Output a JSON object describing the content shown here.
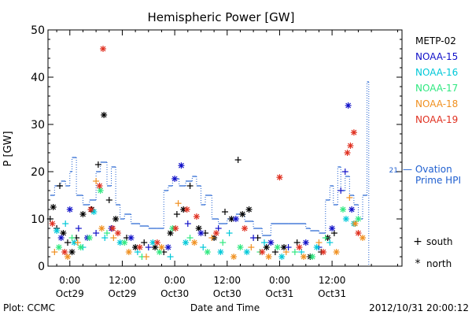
{
  "chart_data": {
    "type": "scatter",
    "title": "Hemispheric Power [GW]",
    "ylabel": "P [GW]",
    "xlabel": "Date and Time",
    "ylim": [
      0,
      50
    ],
    "y_ticks": [
      0,
      10,
      20,
      30,
      40,
      50
    ],
    "xlim": [
      -5,
      76
    ],
    "x_unit": "hours from 2012-10-29 00:00 UT",
    "x_ticks": [
      {
        "x": 0,
        "time": "0:00",
        "date": "Oct29"
      },
      {
        "x": 12,
        "time": "12:00",
        "date": "Oct29"
      },
      {
        "x": 24,
        "time": "0:00",
        "date": "Oct30"
      },
      {
        "x": 36,
        "time": "12:00",
        "date": "Oct30"
      },
      {
        "x": 48,
        "time": "0:00",
        "date": "Oct31"
      },
      {
        "x": 60,
        "time": "12:00",
        "date": "Oct31"
      }
    ],
    "footer_left": "Plot: CCMC",
    "footer_right": "2012/10/31 20:00:12",
    "marker_legend": [
      {
        "symbol": "+",
        "label": "south"
      },
      {
        "symbol": "*",
        "label": "north"
      }
    ],
    "series": [
      {
        "name": "METP-02",
        "color": "#000000",
        "points": [
          {
            "x": -4.5,
            "y": 10,
            "m": "+"
          },
          {
            "x": -3.8,
            "y": 12.5,
            "m": "*"
          },
          {
            "x": -3,
            "y": 8,
            "m": "+"
          },
          {
            "x": -2.3,
            "y": 17,
            "m": "+"
          },
          {
            "x": -1.5,
            "y": 7,
            "m": "*"
          },
          {
            "x": -0.5,
            "y": 5,
            "m": "+"
          },
          {
            "x": 0.5,
            "y": 3,
            "m": "*"
          },
          {
            "x": 1.5,
            "y": 6,
            "m": "+"
          },
          {
            "x": 3,
            "y": 11,
            "m": "*"
          },
          {
            "x": 5,
            "y": 12,
            "m": "*"
          },
          {
            "x": 6.5,
            "y": 21.5,
            "m": "+"
          },
          {
            "x": 7.8,
            "y": 32,
            "m": "*"
          },
          {
            "x": 9,
            "y": 14,
            "m": "+"
          },
          {
            "x": 10.5,
            "y": 10,
            "m": "*"
          },
          {
            "x": 13,
            "y": 6,
            "m": "+"
          },
          {
            "x": 15,
            "y": 4,
            "m": "*"
          },
          {
            "x": 17,
            "y": 5,
            "m": "+"
          },
          {
            "x": 19.5,
            "y": 4,
            "m": "*"
          },
          {
            "x": 21.5,
            "y": 3,
            "m": "+"
          },
          {
            "x": 23,
            "y": 7,
            "m": "*"
          },
          {
            "x": 24.5,
            "y": 11,
            "m": "+"
          },
          {
            "x": 26,
            "y": 12,
            "m": "*"
          },
          {
            "x": 27.5,
            "y": 17,
            "m": "+"
          },
          {
            "x": 29.5,
            "y": 8,
            "m": "*"
          },
          {
            "x": 31,
            "y": 7,
            "m": "+"
          },
          {
            "x": 33,
            "y": 6,
            "m": "*"
          },
          {
            "x": 35.5,
            "y": 11.5,
            "m": "+"
          },
          {
            "x": 37,
            "y": 10,
            "m": "*"
          },
          {
            "x": 38.5,
            "y": 22.5,
            "m": "+"
          },
          {
            "x": 39.5,
            "y": 11,
            "m": "*"
          },
          {
            "x": 41,
            "y": 12,
            "m": "*"
          },
          {
            "x": 43,
            "y": 6,
            "m": "+"
          },
          {
            "x": 45,
            "y": 4,
            "m": "*"
          },
          {
            "x": 47,
            "y": 3,
            "m": "+"
          },
          {
            "x": 49,
            "y": 4,
            "m": "*"
          },
          {
            "x": 52,
            "y": 5,
            "m": "+"
          },
          {
            "x": 55,
            "y": 2,
            "m": "*"
          },
          {
            "x": 57.5,
            "y": 3,
            "m": "+"
          },
          {
            "x": 59,
            "y": 6,
            "m": "*"
          },
          {
            "x": 60.5,
            "y": 7,
            "m": "+"
          }
        ]
      },
      {
        "name": "NOAA-15",
        "color": "#1010c8",
        "points": [
          {
            "x": -2,
            "y": 6,
            "m": "*"
          },
          {
            "x": 0,
            "y": 12,
            "m": "*"
          },
          {
            "x": 2,
            "y": 8,
            "m": "+"
          },
          {
            "x": 4,
            "y": 6,
            "m": "*"
          },
          {
            "x": 6,
            "y": 7,
            "m": "+"
          },
          {
            "x": 9.5,
            "y": 8,
            "m": "*"
          },
          {
            "x": 14,
            "y": 6,
            "m": "*"
          },
          {
            "x": 18,
            "y": 4,
            "m": "+"
          },
          {
            "x": 22.5,
            "y": 4,
            "m": "*"
          },
          {
            "x": 24,
            "y": 18.5,
            "m": "*"
          },
          {
            "x": 25.5,
            "y": 21.3,
            "m": "*"
          },
          {
            "x": 27,
            "y": 9,
            "m": "+"
          },
          {
            "x": 30,
            "y": 7,
            "m": "*"
          },
          {
            "x": 34,
            "y": 8,
            "m": "+"
          },
          {
            "x": 38,
            "y": 10,
            "m": "*"
          },
          {
            "x": 42,
            "y": 6,
            "m": "+"
          },
          {
            "x": 46,
            "y": 5,
            "m": "*"
          },
          {
            "x": 50,
            "y": 4,
            "m": "+"
          },
          {
            "x": 54,
            "y": 5,
            "m": "*"
          },
          {
            "x": 57,
            "y": 4,
            "m": "+"
          },
          {
            "x": 60,
            "y": 8,
            "m": "*"
          },
          {
            "x": 62,
            "y": 16,
            "m": "+"
          },
          {
            "x": 63,
            "y": 20,
            "m": "+"
          },
          {
            "x": 63.7,
            "y": 34,
            "m": "*"
          },
          {
            "x": 64.5,
            "y": 12,
            "m": "*"
          }
        ]
      },
      {
        "name": "NOAA-16",
        "color": "#00c8d8",
        "points": [
          {
            "x": -3,
            "y": 7.5,
            "m": "*"
          },
          {
            "x": -1,
            "y": 9,
            "m": "+"
          },
          {
            "x": 1,
            "y": 5,
            "m": "*"
          },
          {
            "x": 3,
            "y": 4,
            "m": "+"
          },
          {
            "x": 5.5,
            "y": 11.5,
            "m": "*"
          },
          {
            "x": 8,
            "y": 6,
            "m": "+"
          },
          {
            "x": 11.5,
            "y": 5,
            "m": "*"
          },
          {
            "x": 15.5,
            "y": 3,
            "m": "+"
          },
          {
            "x": 19,
            "y": 5,
            "m": "*"
          },
          {
            "x": 23,
            "y": 2,
            "m": "+"
          },
          {
            "x": 26.5,
            "y": 5,
            "m": "*"
          },
          {
            "x": 30.5,
            "y": 4,
            "m": "+"
          },
          {
            "x": 34.5,
            "y": 3,
            "m": "*"
          },
          {
            "x": 36.5,
            "y": 7,
            "m": "+"
          },
          {
            "x": 40.5,
            "y": 3,
            "m": "*"
          },
          {
            "x": 44.5,
            "y": 5,
            "m": "+"
          },
          {
            "x": 48.5,
            "y": 2,
            "m": "*"
          },
          {
            "x": 53,
            "y": 3,
            "m": "+"
          },
          {
            "x": 56.5,
            "y": 4,
            "m": "*"
          },
          {
            "x": 59.5,
            "y": 5,
            "m": "+"
          },
          {
            "x": 63.2,
            "y": 10,
            "m": "*"
          },
          {
            "x": 65,
            "y": 9,
            "m": "*"
          }
        ]
      },
      {
        "name": "NOAA-17",
        "color": "#30e880",
        "points": [
          {
            "x": -2.5,
            "y": 4,
            "m": "*"
          },
          {
            "x": 0.5,
            "y": 6,
            "m": "+"
          },
          {
            "x": 2.5,
            "y": 4,
            "m": "*"
          },
          {
            "x": 4.5,
            "y": 6,
            "m": "*"
          },
          {
            "x": 7,
            "y": 16,
            "m": "*"
          },
          {
            "x": 8.5,
            "y": 7,
            "m": "+"
          },
          {
            "x": 12.5,
            "y": 5,
            "m": "*"
          },
          {
            "x": 16.5,
            "y": 2,
            "m": "+"
          },
          {
            "x": 20.5,
            "y": 3,
            "m": "*"
          },
          {
            "x": 23.5,
            "y": 8,
            "m": "*"
          },
          {
            "x": 27.5,
            "y": 6,
            "m": "+"
          },
          {
            "x": 31.5,
            "y": 3,
            "m": "*"
          },
          {
            "x": 35,
            "y": 5,
            "m": "+"
          },
          {
            "x": 39,
            "y": 4,
            "m": "*"
          },
          {
            "x": 43.5,
            "y": 3,
            "m": "+"
          },
          {
            "x": 47.5,
            "y": 4,
            "m": "*"
          },
          {
            "x": 51.5,
            "y": 3,
            "m": "+"
          },
          {
            "x": 55.5,
            "y": 2,
            "m": "*"
          },
          {
            "x": 58.5,
            "y": 6,
            "m": "+"
          },
          {
            "x": 62.5,
            "y": 12,
            "m": "*"
          },
          {
            "x": 66,
            "y": 10,
            "m": "*"
          }
        ]
      },
      {
        "name": "NOAA-18",
        "color": "#f09020",
        "points": [
          {
            "x": -3.5,
            "y": 3,
            "m": "+"
          },
          {
            "x": -0.5,
            "y": 2,
            "m": "*"
          },
          {
            "x": 1.8,
            "y": 5,
            "m": "+"
          },
          {
            "x": 6,
            "y": 18,
            "m": "+"
          },
          {
            "x": 7.3,
            "y": 8,
            "m": "*"
          },
          {
            "x": 10,
            "y": 6,
            "m": "+"
          },
          {
            "x": 13.5,
            "y": 3,
            "m": "*"
          },
          {
            "x": 17.5,
            "y": 2,
            "m": "+"
          },
          {
            "x": 21,
            "y": 4,
            "m": "*"
          },
          {
            "x": 24.8,
            "y": 13.3,
            "m": "+"
          },
          {
            "x": 28.5,
            "y": 5,
            "m": "*"
          },
          {
            "x": 32.5,
            "y": 6,
            "m": "+"
          },
          {
            "x": 37.5,
            "y": 2,
            "m": "*"
          },
          {
            "x": 41.5,
            "y": 4,
            "m": "+"
          },
          {
            "x": 45.5,
            "y": 2,
            "m": "*"
          },
          {
            "x": 49.5,
            "y": 3,
            "m": "+"
          },
          {
            "x": 53.5,
            "y": 2,
            "m": "*"
          },
          {
            "x": 57,
            "y": 5,
            "m": "+"
          },
          {
            "x": 61,
            "y": 3,
            "m": "*"
          },
          {
            "x": 64,
            "y": 14.5,
            "m": "+"
          },
          {
            "x": 65.3,
            "y": 9,
            "m": "*"
          },
          {
            "x": 67,
            "y": 6,
            "m": "*"
          }
        ]
      },
      {
        "name": "NOAA-19",
        "color": "#e03020",
        "points": [
          {
            "x": -4,
            "y": 9,
            "m": "*"
          },
          {
            "x": -1.2,
            "y": 3,
            "m": "*"
          },
          {
            "x": 4.8,
            "y": 12,
            "m": "*"
          },
          {
            "x": 6.8,
            "y": 17,
            "m": "*"
          },
          {
            "x": 7.6,
            "y": 46,
            "m": "*"
          },
          {
            "x": 9.8,
            "y": 8,
            "m": "*"
          },
          {
            "x": 11,
            "y": 7,
            "m": "*"
          },
          {
            "x": 16,
            "y": 4,
            "m": "*"
          },
          {
            "x": 20,
            "y": 5,
            "m": "*"
          },
          {
            "x": 24.2,
            "y": 8,
            "m": "*"
          },
          {
            "x": 26.8,
            "y": 12,
            "m": "*"
          },
          {
            "x": 29,
            "y": 10.5,
            "m": "*"
          },
          {
            "x": 33.5,
            "y": 7,
            "m": "*"
          },
          {
            "x": 40,
            "y": 8,
            "m": "*"
          },
          {
            "x": 44,
            "y": 3,
            "m": "*"
          },
          {
            "x": 48,
            "y": 18.8,
            "m": "*"
          },
          {
            "x": 52.5,
            "y": 4,
            "m": "*"
          },
          {
            "x": 58,
            "y": 3,
            "m": "*"
          },
          {
            "x": 63.5,
            "y": 24,
            "m": "*"
          },
          {
            "x": 64.2,
            "y": 25.5,
            "m": "*"
          },
          {
            "x": 65,
            "y": 28.3,
            "m": "*"
          },
          {
            "x": 66,
            "y": 7,
            "m": "*"
          }
        ]
      }
    ],
    "ovation": {
      "label_lines": [
        "— Ovation",
        "Prime HPI"
      ],
      "color": "#2060d0",
      "value_label": "21",
      "steps": [
        [
          -4.5,
          15
        ],
        [
          -3.5,
          17
        ],
        [
          -2,
          18
        ],
        [
          -1,
          17
        ],
        [
          0,
          20
        ],
        [
          0.5,
          23
        ],
        [
          1.5,
          15
        ],
        [
          3,
          13
        ],
        [
          4.5,
          14
        ],
        [
          6,
          20
        ],
        [
          7,
          22
        ],
        [
          8.5,
          17
        ],
        [
          9.5,
          21
        ],
        [
          10.5,
          13
        ],
        [
          11.5,
          10
        ],
        [
          12.5,
          11
        ],
        [
          14,
          9
        ],
        [
          16,
          8.5
        ],
        [
          18,
          8
        ],
        [
          20,
          8
        ],
        [
          21.5,
          16
        ],
        [
          22.5,
          17
        ],
        [
          23.5,
          18.5
        ],
        [
          25,
          17
        ],
        [
          26.5,
          18
        ],
        [
          28,
          19
        ],
        [
          29,
          17
        ],
        [
          30,
          13
        ],
        [
          31,
          15
        ],
        [
          32.5,
          10
        ],
        [
          34,
          9
        ],
        [
          36,
          10
        ],
        [
          38,
          11
        ],
        [
          40,
          9.5
        ],
        [
          42,
          8
        ],
        [
          44,
          6.5
        ],
        [
          46,
          9
        ],
        [
          50,
          9
        ],
        [
          54,
          8
        ],
        [
          55,
          7.5
        ],
        [
          57,
          7
        ],
        [
          58.5,
          14
        ],
        [
          59.5,
          17
        ],
        [
          60.3,
          13
        ],
        [
          61.3,
          21
        ],
        [
          62,
          16
        ],
        [
          63,
          19
        ],
        [
          64,
          15
        ],
        [
          65,
          13
        ],
        [
          66,
          10
        ],
        [
          67,
          15
        ],
        [
          68,
          39
        ],
        [
          68.4,
          39
        ]
      ]
    }
  }
}
